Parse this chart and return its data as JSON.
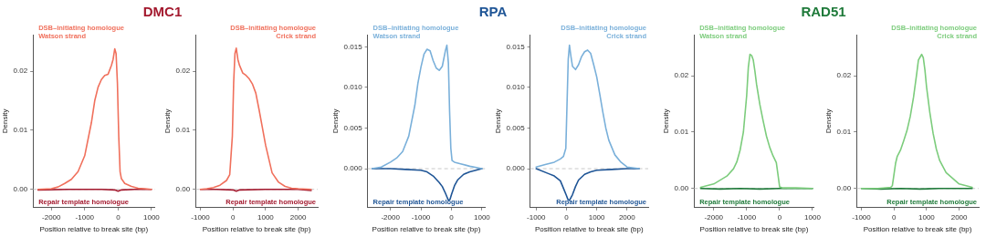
{
  "chart_data": [
    {
      "type": "line",
      "title": "DMC1",
      "xlabel": "Position relative to break site (bp)",
      "ylabel": "Density",
      "xlim": [
        -2550,
        1100
      ],
      "xticks": [
        -2000,
        -1000,
        0,
        1000
      ],
      "ylim": [
        -0.0031,
        0.0262
      ],
      "yticks": [
        {
          "value": 0,
          "label": "0.00"
        },
        {
          "value": 0.01,
          "label": "0.01"
        },
        {
          "value": 0.02,
          "label": "0.02"
        }
      ],
      "ref_lines": [
        {
          "axis": "y",
          "value": 0,
          "color": "#bbbbbb",
          "line_style": "dashed"
        }
      ],
      "grid": false,
      "legend": false,
      "marker": "none",
      "series": [
        {
          "name": "DSB–initiating homologue\nWatson strand",
          "color": "#f0705c",
          "x": [
            -2400,
            -2000,
            -1800,
            -1600,
            -1400,
            -1200,
            -1000,
            -800,
            -700,
            -600,
            -500,
            -400,
            -300,
            -200,
            -150,
            -100,
            -60,
            -20,
            20,
            60,
            100,
            200,
            400,
            600,
            800,
            1000
          ],
          "values": [
            0,
            0.0001,
            0.0004,
            0.001,
            0.0017,
            0.003,
            0.0057,
            0.0113,
            0.015,
            0.0173,
            0.0186,
            0.0193,
            0.0195,
            0.021,
            0.022,
            0.0238,
            0.023,
            0.018,
            0.009,
            0.003,
            0.0018,
            0.001,
            0.0005,
            0.0002,
            0.0001,
            0
          ]
        },
        {
          "name": "Repair template homologue",
          "color": "#a3192e",
          "x": [
            -2400,
            -1500,
            -500,
            -100,
            0,
            100,
            500,
            1000
          ],
          "values": [
            -0.0001,
            0,
            0,
            -0.0001,
            -0.0003,
            -0.0001,
            0,
            0
          ]
        }
      ]
    },
    {
      "type": "line",
      "xlabel": "Position relative to break site (bp)",
      "ylabel": "Density",
      "xlim": [
        -1150,
        2600
      ],
      "xticks": [
        -1000,
        0,
        1000,
        2000
      ],
      "ylim": [
        -0.0031,
        0.0262
      ],
      "yticks": [
        {
          "value": 0,
          "label": "0.00"
        },
        {
          "value": 0.01,
          "label": "0.01"
        },
        {
          "value": 0.02,
          "label": "0.02"
        }
      ],
      "ref_lines": [
        {
          "axis": "y",
          "value": 0,
          "color": "#bbbbbb",
          "line_style": "dashed"
        }
      ],
      "grid": false,
      "legend": false,
      "marker": "none",
      "series": [
        {
          "name": "DSB–initiating homologue\nCrick strand",
          "color": "#f0705c",
          "x": [
            -1000,
            -800,
            -600,
            -400,
            -200,
            -100,
            -20,
            20,
            60,
            100,
            150,
            200,
            300,
            400,
            500,
            600,
            700,
            800,
            900,
            1000,
            1200,
            1400,
            1600,
            1800,
            2000,
            2400
          ],
          "values": [
            0,
            0.0001,
            0.0003,
            0.0007,
            0.0015,
            0.0025,
            0.009,
            0.018,
            0.023,
            0.0239,
            0.022,
            0.021,
            0.0197,
            0.0193,
            0.0187,
            0.0178,
            0.0163,
            0.0135,
            0.0105,
            0.0075,
            0.0028,
            0.0012,
            0.0005,
            0.0002,
            0.0001,
            0
          ]
        },
        {
          "name": "Repair template homologue",
          "color": "#a3192e",
          "x": [
            -1000,
            -500,
            0,
            100,
            200,
            1000,
            2000,
            2400
          ],
          "values": [
            0,
            0,
            -0.0001,
            -0.0003,
            -0.0001,
            0,
            0,
            -0.0002
          ]
        }
      ]
    },
    {
      "type": "line",
      "title": "RPA",
      "xlabel": "Position relative to break site (bp)",
      "ylabel": "Density",
      "xlim": [
        -2750,
        1100
      ],
      "xticks": [
        -2000,
        -1000,
        0,
        1000
      ],
      "ylim": [
        -0.0048,
        0.0165
      ],
      "yticks": [
        {
          "value": 0,
          "label": "0.000"
        },
        {
          "value": 0.005,
          "label": "0.005"
        },
        {
          "value": 0.01,
          "label": "0.010"
        },
        {
          "value": 0.015,
          "label": "0.015"
        }
      ],
      "ref_lines": [
        {
          "axis": "y",
          "value": 0,
          "color": "#bbbbbb",
          "line_style": "dashed"
        }
      ],
      "grid": false,
      "legend": false,
      "marker": "none",
      "series": [
        {
          "name": "DSB–initiating homologue\nWatson strand",
          "color": "#7ab0da",
          "x": [
            -2600,
            -2300,
            -2000,
            -1800,
            -1600,
            -1400,
            -1200,
            -1100,
            -1000,
            -900,
            -800,
            -700,
            -600,
            -500,
            -400,
            -300,
            -200,
            -150,
            -100,
            -60,
            -20,
            20,
            100,
            300,
            600,
            1000
          ],
          "values": [
            0,
            0.0002,
            0.0008,
            0.0013,
            0.0021,
            0.004,
            0.0078,
            0.0105,
            0.0125,
            0.0141,
            0.0147,
            0.0145,
            0.0133,
            0.0124,
            0.0121,
            0.0126,
            0.0145,
            0.0152,
            0.013,
            0.007,
            0.0025,
            0.001,
            0.0008,
            0.0006,
            0.0003,
            0
          ]
        },
        {
          "name": "Repair template homologue",
          "color": "#1f5596",
          "x": [
            -2600,
            -2000,
            -1500,
            -1000,
            -800,
            -600,
            -400,
            -300,
            -200,
            -100,
            -50,
            0,
            100,
            200,
            400,
            600,
            1000
          ],
          "values": [
            0,
            0,
            -0.0001,
            -0.0002,
            -0.0004,
            -0.0009,
            -0.0017,
            -0.0022,
            -0.003,
            -0.0039,
            -0.0038,
            -0.0032,
            -0.0021,
            -0.0014,
            -0.0007,
            -0.0004,
            0
          ]
        }
      ]
    },
    {
      "type": "line",
      "xlabel": "Position relative to break site (bp)",
      "ylabel": "Density",
      "xlim": [
        -1200,
        2700
      ],
      "xticks": [
        -1000,
        0,
        1000,
        2000
      ],
      "ylim": [
        -0.0048,
        0.0165
      ],
      "yticks": [
        {
          "value": 0,
          "label": "0.000"
        },
        {
          "value": 0.005,
          "label": "0.005"
        },
        {
          "value": 0.01,
          "label": "0.010"
        },
        {
          "value": 0.015,
          "label": "0.015"
        }
      ],
      "ref_lines": [
        {
          "axis": "y",
          "value": 0,
          "color": "#bbbbbb",
          "line_style": "dashed"
        }
      ],
      "grid": false,
      "legend": false,
      "marker": "none",
      "series": [
        {
          "name": "DSB–initiating homologue\nCrick strand",
          "color": "#7ab0da",
          "x": [
            -1000,
            -700,
            -400,
            -200,
            -100,
            -20,
            20,
            60,
            100,
            150,
            200,
            300,
            400,
            500,
            600,
            700,
            800,
            900,
            1000,
            1100,
            1200,
            1300,
            1400,
            1600,
            1800,
            2000,
            2400
          ],
          "values": [
            0.0002,
            0.0005,
            0.0008,
            0.0012,
            0.0015,
            0.0025,
            0.008,
            0.0135,
            0.0152,
            0.0138,
            0.0126,
            0.0122,
            0.0128,
            0.0138,
            0.0144,
            0.0146,
            0.0142,
            0.0128,
            0.0113,
            0.0092,
            0.007,
            0.005,
            0.0035,
            0.0017,
            0.0008,
            0.0002,
            0
          ]
        },
        {
          "name": "Repair template homologue",
          "color": "#1f5596",
          "x": [
            -1000,
            -600,
            -400,
            -200,
            -100,
            0,
            50,
            100,
            200,
            300,
            400,
            600,
            800,
            1000,
            1500,
            2000,
            2400
          ],
          "values": [
            0,
            -0.0006,
            -0.0009,
            -0.0015,
            -0.0024,
            -0.0033,
            -0.0038,
            -0.0039,
            -0.0032,
            -0.0022,
            -0.0014,
            -0.0007,
            -0.0004,
            -0.0002,
            -0.0001,
            0,
            0
          ]
        }
      ]
    },
    {
      "type": "line",
      "title": "RAD51",
      "xlabel": "Position relative to break site (bp)",
      "ylabel": "Density",
      "xlim": [
        -2600,
        1050
      ],
      "xticks": [
        -2000,
        -1000,
        0,
        1000
      ],
      "ylim": [
        -0.0034,
        0.0273
      ],
      "yticks": [
        {
          "value": 0,
          "label": "0.00"
        },
        {
          "value": 0.01,
          "label": "0.01"
        },
        {
          "value": 0.02,
          "label": "0.02"
        }
      ],
      "ref_lines": [
        {
          "axis": "y",
          "value": 0,
          "color": "#bbbbbb",
          "line_style": "dashed"
        }
      ],
      "grid": false,
      "legend": false,
      "marker": "none",
      "series": [
        {
          "name": "DSB–initiating homologue\nWatson strand",
          "color": "#7ccc7c",
          "x": [
            -2400,
            -2000,
            -1600,
            -1400,
            -1300,
            -1200,
            -1100,
            -1000,
            -950,
            -900,
            -850,
            -800,
            -750,
            -700,
            -600,
            -500,
            -400,
            -300,
            -200,
            -100,
            -50,
            0,
            100,
            500,
            1000
          ],
          "values": [
            0.0002,
            0.0008,
            0.0022,
            0.0035,
            0.0047,
            0.0068,
            0.01,
            0.0165,
            0.0215,
            0.0238,
            0.0236,
            0.0228,
            0.0208,
            0.0185,
            0.0149,
            0.012,
            0.0093,
            0.0073,
            0.0058,
            0.0046,
            0.0025,
            0.0003,
            0.0001,
            0.0001,
            0
          ]
        },
        {
          "name": "Repair template homologue",
          "color": "#1f7a3a",
          "x": [
            -2400,
            -1800,
            -1200,
            -600,
            0,
            500,
            1000
          ],
          "values": [
            0,
            -0.0001,
            0,
            -0.0001,
            0,
            0,
            0
          ]
        }
      ]
    },
    {
      "type": "line",
      "xlabel": "Position relative to break site (bp)",
      "ylabel": "Density",
      "xlim": [
        -1150,
        2600
      ],
      "xticks": [
        -1000,
        0,
        1000,
        2000
      ],
      "ylim": [
        -0.0034,
        0.0273
      ],
      "yticks": [
        {
          "value": 0,
          "label": "0.00"
        },
        {
          "value": 0.01,
          "label": "0.01"
        },
        {
          "value": 0.02,
          "label": "0.02"
        }
      ],
      "ref_lines": [
        {
          "axis": "y",
          "value": 0,
          "color": "#bbbbbb",
          "line_style": "dashed"
        }
      ],
      "grid": false,
      "legend": false,
      "marker": "none",
      "series": [
        {
          "name": "DSB–initiating homologue\nCrick strand",
          "color": "#7ccc7c",
          "x": [
            -1000,
            -500,
            -100,
            -50,
            0,
            50,
            100,
            200,
            300,
            400,
            500,
            600,
            700,
            750,
            800,
            850,
            900,
            950,
            1000,
            1100,
            1200,
            1300,
            1400,
            1600,
            2000,
            2400
          ],
          "values": [
            0,
            0,
            0.0002,
            0.0005,
            0.0025,
            0.0045,
            0.0057,
            0.0068,
            0.0085,
            0.0103,
            0.0128,
            0.0162,
            0.0205,
            0.0228,
            0.0233,
            0.0238,
            0.0232,
            0.021,
            0.018,
            0.0135,
            0.0098,
            0.007,
            0.005,
            0.0028,
            0.0008,
            0.0002
          ]
        },
        {
          "name": "Repair template homologue",
          "color": "#1f7a3a",
          "x": [
            -1000,
            -400,
            200,
            800,
            1400,
            2000,
            2400
          ],
          "values": [
            0,
            -0.0001,
            0,
            -0.0001,
            0,
            0,
            0
          ]
        }
      ]
    }
  ]
}
